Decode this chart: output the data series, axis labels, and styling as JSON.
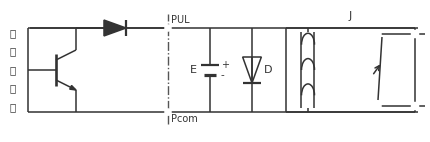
{
  "bg_color": "#ffffff",
  "line_color": "#333333",
  "text_color": "#333333",
  "fig_width": 4.3,
  "fig_height": 1.42,
  "dpi": 100,
  "label_zhuanhuanqi": [
    "转",
    "换",
    "器",
    "内",
    "部"
  ],
  "label_PUL": "PUL",
  "label_Pcom": "Pcom",
  "label_E": "E",
  "label_D": "D",
  "label_J": "J",
  "label_plus": "+",
  "label_minus": "-"
}
